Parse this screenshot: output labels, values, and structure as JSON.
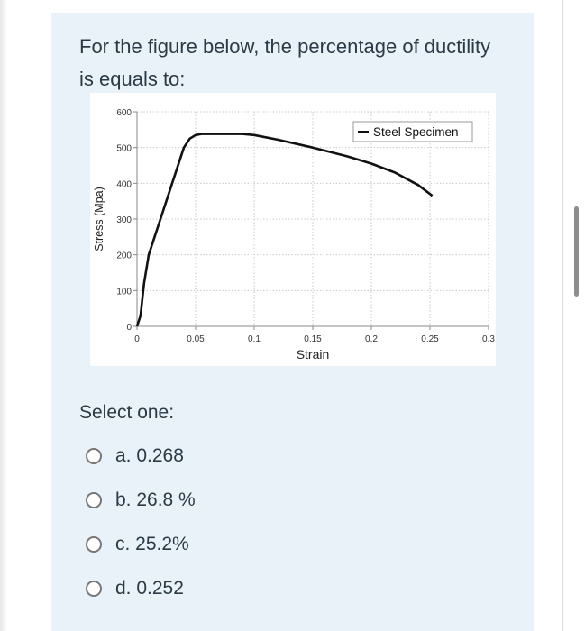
{
  "question": {
    "text": "For the figure below, the percentage of ductility is equals to:"
  },
  "figure": {
    "legend_label": "Steel Specimen",
    "series_color": "#111111"
  },
  "chart_data": {
    "type": "line",
    "title": "",
    "xlabel": "Strain",
    "ylabel": "Stress (Mpa)",
    "xlim": [
      0,
      0.3
    ],
    "ylim": [
      0,
      600
    ],
    "xticks": [
      "0",
      "0.05",
      "0.1",
      "0.15",
      "0.2",
      "0.25",
      "0.3"
    ],
    "yticks": [
      "0",
      "100",
      "200",
      "300",
      "400",
      "500",
      "600"
    ],
    "xtick_values": [
      0,
      0.05,
      0.1,
      0.15,
      0.2,
      0.25,
      0.3
    ],
    "ytick_values": [
      0,
      100,
      200,
      300,
      400,
      500,
      600
    ],
    "grid": true,
    "legend_position": "top-right",
    "series": [
      {
        "name": "Steel Specimen",
        "x": [
          0,
          0.003,
          0.006,
          0.01,
          0.02,
          0.03,
          0.04,
          0.045,
          0.05,
          0.055,
          0.07,
          0.09,
          0.1,
          0.12,
          0.15,
          0.18,
          0.2,
          0.22,
          0.24,
          0.25,
          0.252
        ],
        "y": [
          0,
          30,
          120,
          200,
          300,
          400,
          500,
          525,
          535,
          538,
          538,
          538,
          535,
          522,
          500,
          475,
          455,
          430,
          395,
          370,
          365
        ]
      }
    ]
  },
  "select": {
    "label": "Select one:"
  },
  "options": [
    {
      "label": "a. 0.268"
    },
    {
      "label": "b. 26.8 %"
    },
    {
      "label": "c. 25.2%"
    },
    {
      "label": "d. 0.252"
    }
  ]
}
